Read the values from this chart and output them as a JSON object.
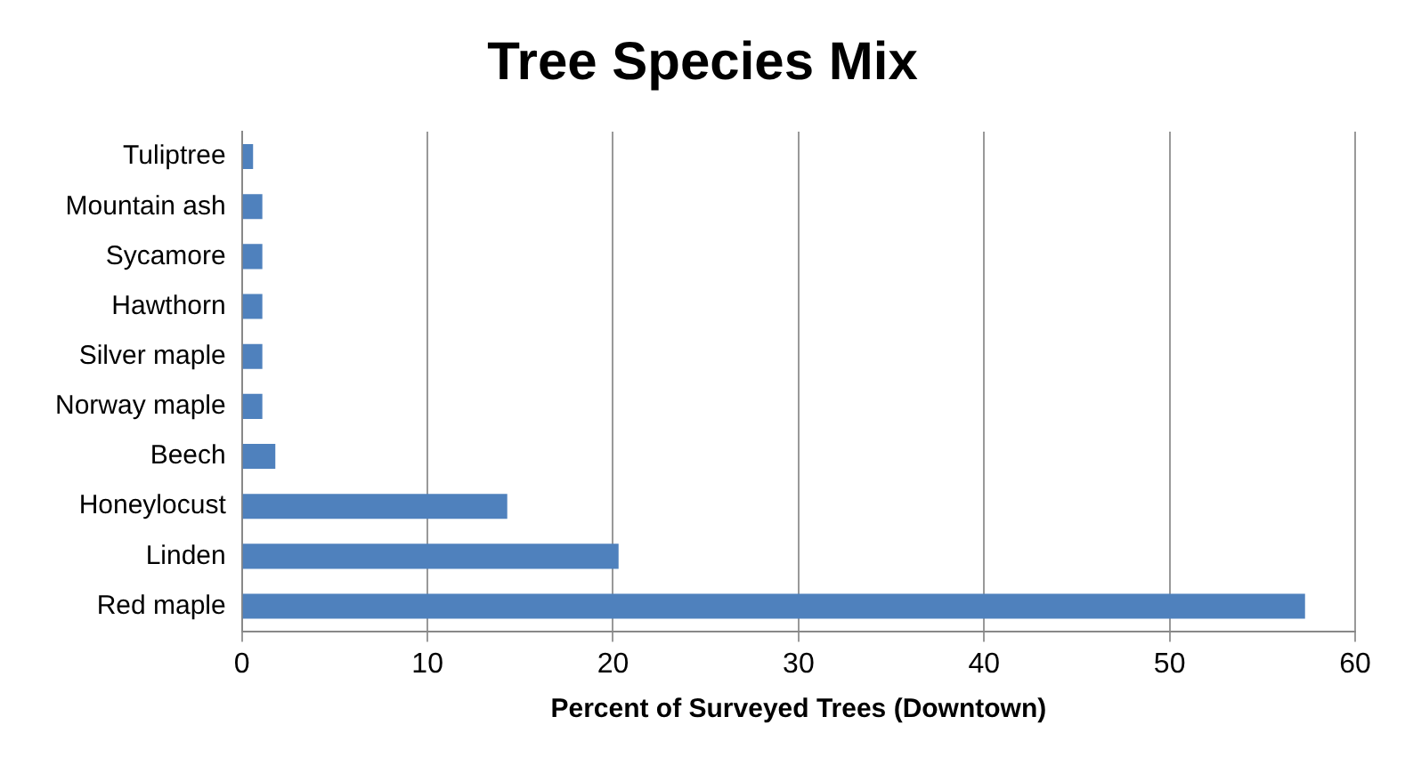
{
  "chart_data": {
    "type": "bar",
    "orientation": "horizontal",
    "title": "Tree Species Mix",
    "xlabel": "Percent of Surveyed Trees (Downtown)",
    "categories": [
      "Tuliptree",
      "Mountain ash",
      "Sycamore",
      "Hawthorn",
      "Silver maple",
      "Norway maple",
      "Beech",
      "Honeylocust",
      "Linden",
      "Red maple"
    ],
    "values": [
      0.6,
      1.1,
      1.1,
      1.1,
      1.1,
      1.1,
      1.8,
      14.3,
      20.3,
      57.3
    ],
    "color": "#4f81bd",
    "xlim": [
      0,
      60
    ],
    "xticks": [
      0,
      10,
      20,
      30,
      40,
      50,
      60
    ],
    "grid": "x"
  }
}
